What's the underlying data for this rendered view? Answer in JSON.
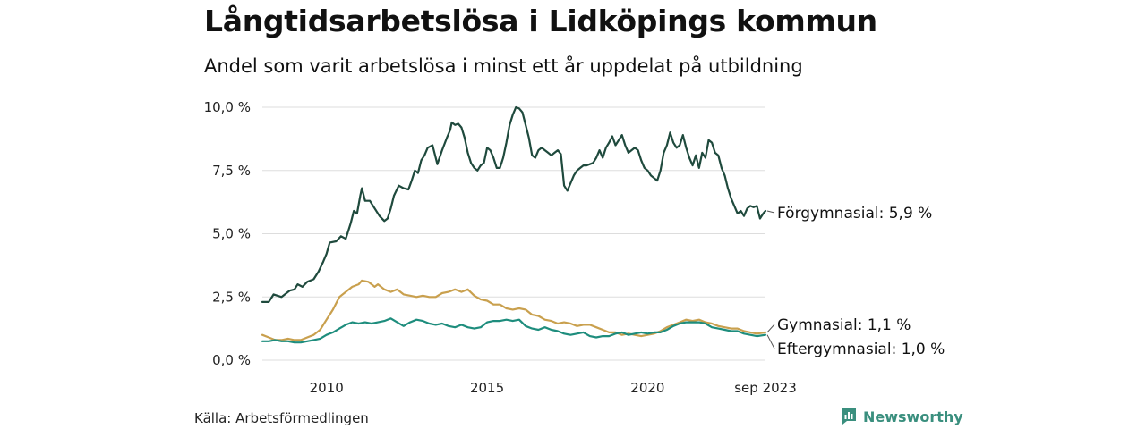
{
  "colors": {
    "forgymnasial": "#1f4a3d",
    "gymnasial": "#c9a04e",
    "eftergymnasial": "#1e8d7d",
    "grid": "#dddddd",
    "brand": "#3a8f7e"
  },
  "chart_data": {
    "type": "line",
    "title": "Långtidsarbetslösa i Lidköpings kommun",
    "subtitle": "Andel som varit arbetslösa i minst ett år uppdelat på utbildning",
    "xlabel": "",
    "ylabel": "",
    "xlim": [
      2008.0,
      2023.67
    ],
    "ylim": [
      0,
      10
    ],
    "y_ticks": [
      0,
      2.5,
      5,
      7.5,
      10
    ],
    "y_tick_labels": [
      "0,0 %",
      "2,5 %",
      "5,0 %",
      "7,5 %",
      "10,0 %"
    ],
    "x_ticks": [
      2010,
      2015,
      2020,
      2023.67
    ],
    "x_tick_labels": [
      "2010",
      "2015",
      "2020",
      "sep 2023"
    ],
    "grid": true,
    "series": [
      {
        "name": "Förgymnasial",
        "end_label": "Förgymnasial: 5,9 %",
        "color_key": "forgymnasial",
        "points": [
          [
            2008.0,
            2.3
          ],
          [
            2008.2,
            2.3
          ],
          [
            2008.35,
            2.6
          ],
          [
            2008.6,
            2.5
          ],
          [
            2008.85,
            2.75
          ],
          [
            2009.0,
            2.8
          ],
          [
            2009.1,
            3.0
          ],
          [
            2009.25,
            2.9
          ],
          [
            2009.4,
            3.1
          ],
          [
            2009.6,
            3.2
          ],
          [
            2009.75,
            3.5
          ],
          [
            2009.9,
            3.9
          ],
          [
            2010.0,
            4.2
          ],
          [
            2010.1,
            4.65
          ],
          [
            2010.3,
            4.7
          ],
          [
            2010.45,
            4.9
          ],
          [
            2010.6,
            4.8
          ],
          [
            2010.75,
            5.4
          ],
          [
            2010.85,
            5.9
          ],
          [
            2010.95,
            5.8
          ],
          [
            2011.05,
            6.5
          ],
          [
            2011.1,
            6.8
          ],
          [
            2011.2,
            6.3
          ],
          [
            2011.35,
            6.3
          ],
          [
            2011.5,
            6.0
          ],
          [
            2011.65,
            5.7
          ],
          [
            2011.8,
            5.5
          ],
          [
            2011.9,
            5.6
          ],
          [
            2012.0,
            6.0
          ],
          [
            2012.1,
            6.5
          ],
          [
            2012.25,
            6.9
          ],
          [
            2012.4,
            6.8
          ],
          [
            2012.55,
            6.75
          ],
          [
            2012.65,
            7.1
          ],
          [
            2012.75,
            7.5
          ],
          [
            2012.85,
            7.4
          ],
          [
            2012.95,
            7.9
          ],
          [
            2013.05,
            8.1
          ],
          [
            2013.15,
            8.4
          ],
          [
            2013.3,
            8.5
          ],
          [
            2013.45,
            7.75
          ],
          [
            2013.6,
            8.3
          ],
          [
            2013.75,
            8.8
          ],
          [
            2013.85,
            9.1
          ],
          [
            2013.9,
            9.4
          ],
          [
            2014.0,
            9.3
          ],
          [
            2014.1,
            9.35
          ],
          [
            2014.2,
            9.2
          ],
          [
            2014.3,
            8.8
          ],
          [
            2014.4,
            8.2
          ],
          [
            2014.5,
            7.8
          ],
          [
            2014.6,
            7.6
          ],
          [
            2014.7,
            7.5
          ],
          [
            2014.8,
            7.7
          ],
          [
            2014.9,
            7.8
          ],
          [
            2015.0,
            8.4
          ],
          [
            2015.1,
            8.3
          ],
          [
            2015.2,
            8.0
          ],
          [
            2015.3,
            7.6
          ],
          [
            2015.4,
            7.6
          ],
          [
            2015.5,
            8.0
          ],
          [
            2015.6,
            8.6
          ],
          [
            2015.7,
            9.3
          ],
          [
            2015.8,
            9.7
          ],
          [
            2015.9,
            10.0
          ],
          [
            2016.0,
            9.95
          ],
          [
            2016.1,
            9.8
          ],
          [
            2016.2,
            9.3
          ],
          [
            2016.3,
            8.8
          ],
          [
            2016.4,
            8.1
          ],
          [
            2016.5,
            8.0
          ],
          [
            2016.6,
            8.3
          ],
          [
            2016.7,
            8.4
          ],
          [
            2016.8,
            8.3
          ],
          [
            2016.9,
            8.2
          ],
          [
            2017.0,
            8.1
          ],
          [
            2017.1,
            8.2
          ],
          [
            2017.2,
            8.3
          ],
          [
            2017.3,
            8.15
          ],
          [
            2017.4,
            6.9
          ],
          [
            2017.5,
            6.7
          ],
          [
            2017.6,
            7.0
          ],
          [
            2017.7,
            7.3
          ],
          [
            2017.8,
            7.5
          ],
          [
            2017.9,
            7.6
          ],
          [
            2018.0,
            7.7
          ],
          [
            2018.1,
            7.7
          ],
          [
            2018.2,
            7.75
          ],
          [
            2018.3,
            7.8
          ],
          [
            2018.4,
            8.0
          ],
          [
            2018.5,
            8.3
          ],
          [
            2018.6,
            8.0
          ],
          [
            2018.7,
            8.4
          ],
          [
            2018.8,
            8.6
          ],
          [
            2018.9,
            8.85
          ],
          [
            2019.0,
            8.5
          ],
          [
            2019.1,
            8.7
          ],
          [
            2019.2,
            8.9
          ],
          [
            2019.3,
            8.5
          ],
          [
            2019.4,
            8.2
          ],
          [
            2019.5,
            8.3
          ],
          [
            2019.6,
            8.4
          ],
          [
            2019.7,
            8.3
          ],
          [
            2019.8,
            7.9
          ],
          [
            2019.9,
            7.6
          ],
          [
            2020.0,
            7.5
          ],
          [
            2020.1,
            7.3
          ],
          [
            2020.2,
            7.2
          ],
          [
            2020.3,
            7.1
          ],
          [
            2020.4,
            7.5
          ],
          [
            2020.5,
            8.2
          ],
          [
            2020.6,
            8.5
          ],
          [
            2020.7,
            9.0
          ],
          [
            2020.8,
            8.6
          ],
          [
            2020.9,
            8.4
          ],
          [
            2021.0,
            8.5
          ],
          [
            2021.1,
            8.9
          ],
          [
            2021.2,
            8.4
          ],
          [
            2021.3,
            8.0
          ],
          [
            2021.4,
            7.7
          ],
          [
            2021.5,
            8.1
          ],
          [
            2021.6,
            7.6
          ],
          [
            2021.7,
            8.2
          ],
          [
            2021.8,
            8.0
          ],
          [
            2021.9,
            8.7
          ],
          [
            2022.0,
            8.6
          ],
          [
            2022.1,
            8.2
          ],
          [
            2022.2,
            8.1
          ],
          [
            2022.3,
            7.6
          ],
          [
            2022.4,
            7.3
          ],
          [
            2022.5,
            6.8
          ],
          [
            2022.6,
            6.4
          ],
          [
            2022.7,
            6.1
          ],
          [
            2022.8,
            5.8
          ],
          [
            2022.9,
            5.9
          ],
          [
            2023.0,
            5.7
          ],
          [
            2023.1,
            6.0
          ],
          [
            2023.2,
            6.1
          ],
          [
            2023.3,
            6.05
          ],
          [
            2023.4,
            6.1
          ],
          [
            2023.5,
            5.6
          ],
          [
            2023.6,
            5.8
          ],
          [
            2023.67,
            5.9
          ]
        ]
      },
      {
        "name": "Gymnasial",
        "end_label": "Gymnasial: 1,1 %",
        "color_key": "gymnasial",
        "points": [
          [
            2008.0,
            1.0
          ],
          [
            2008.2,
            0.9
          ],
          [
            2008.4,
            0.8
          ],
          [
            2008.6,
            0.8
          ],
          [
            2008.8,
            0.85
          ],
          [
            2009.0,
            0.8
          ],
          [
            2009.2,
            0.8
          ],
          [
            2009.4,
            0.9
          ],
          [
            2009.6,
            1.0
          ],
          [
            2009.8,
            1.2
          ],
          [
            2010.0,
            1.6
          ],
          [
            2010.2,
            2.0
          ],
          [
            2010.4,
            2.5
          ],
          [
            2010.6,
            2.7
          ],
          [
            2010.8,
            2.9
          ],
          [
            2011.0,
            3.0
          ],
          [
            2011.1,
            3.15
          ],
          [
            2011.3,
            3.1
          ],
          [
            2011.5,
            2.9
          ],
          [
            2011.6,
            3.0
          ],
          [
            2011.8,
            2.8
          ],
          [
            2012.0,
            2.7
          ],
          [
            2012.2,
            2.8
          ],
          [
            2012.4,
            2.6
          ],
          [
            2012.6,
            2.55
          ],
          [
            2012.8,
            2.5
          ],
          [
            2013.0,
            2.55
          ],
          [
            2013.2,
            2.5
          ],
          [
            2013.4,
            2.5
          ],
          [
            2013.6,
            2.65
          ],
          [
            2013.8,
            2.7
          ],
          [
            2014.0,
            2.8
          ],
          [
            2014.2,
            2.7
          ],
          [
            2014.4,
            2.8
          ],
          [
            2014.6,
            2.55
          ],
          [
            2014.8,
            2.4
          ],
          [
            2015.0,
            2.35
          ],
          [
            2015.2,
            2.2
          ],
          [
            2015.4,
            2.2
          ],
          [
            2015.6,
            2.05
          ],
          [
            2015.8,
            2.0
          ],
          [
            2016.0,
            2.05
          ],
          [
            2016.2,
            2.0
          ],
          [
            2016.4,
            1.8
          ],
          [
            2016.6,
            1.75
          ],
          [
            2016.8,
            1.6
          ],
          [
            2017.0,
            1.55
          ],
          [
            2017.2,
            1.45
          ],
          [
            2017.4,
            1.5
          ],
          [
            2017.6,
            1.45
          ],
          [
            2017.8,
            1.35
          ],
          [
            2018.0,
            1.4
          ],
          [
            2018.2,
            1.4
          ],
          [
            2018.4,
            1.3
          ],
          [
            2018.6,
            1.2
          ],
          [
            2018.8,
            1.1
          ],
          [
            2019.0,
            1.1
          ],
          [
            2019.2,
            1.0
          ],
          [
            2019.4,
            1.05
          ],
          [
            2019.6,
            1.0
          ],
          [
            2019.8,
            0.95
          ],
          [
            2020.0,
            1.0
          ],
          [
            2020.2,
            1.05
          ],
          [
            2020.4,
            1.15
          ],
          [
            2020.6,
            1.3
          ],
          [
            2020.8,
            1.4
          ],
          [
            2021.0,
            1.5
          ],
          [
            2021.2,
            1.6
          ],
          [
            2021.4,
            1.55
          ],
          [
            2021.6,
            1.6
          ],
          [
            2021.8,
            1.5
          ],
          [
            2022.0,
            1.45
          ],
          [
            2022.2,
            1.35
          ],
          [
            2022.4,
            1.3
          ],
          [
            2022.6,
            1.25
          ],
          [
            2022.8,
            1.25
          ],
          [
            2023.0,
            1.15
          ],
          [
            2023.2,
            1.1
          ],
          [
            2023.4,
            1.05
          ],
          [
            2023.67,
            1.1
          ]
        ]
      },
      {
        "name": "Eftergymnasial",
        "end_label": "Eftergymnasial: 1,0 %",
        "color_key": "eftergymnasial",
        "points": [
          [
            2008.0,
            0.75
          ],
          [
            2008.2,
            0.75
          ],
          [
            2008.4,
            0.8
          ],
          [
            2008.6,
            0.75
          ],
          [
            2008.8,
            0.75
          ],
          [
            2009.0,
            0.7
          ],
          [
            2009.2,
            0.7
          ],
          [
            2009.4,
            0.75
          ],
          [
            2009.6,
            0.8
          ],
          [
            2009.8,
            0.85
          ],
          [
            2010.0,
            1.0
          ],
          [
            2010.2,
            1.1
          ],
          [
            2010.4,
            1.25
          ],
          [
            2010.6,
            1.4
          ],
          [
            2010.8,
            1.5
          ],
          [
            2011.0,
            1.45
          ],
          [
            2011.2,
            1.5
          ],
          [
            2011.4,
            1.45
          ],
          [
            2011.6,
            1.5
          ],
          [
            2011.8,
            1.55
          ],
          [
            2012.0,
            1.65
          ],
          [
            2012.2,
            1.5
          ],
          [
            2012.4,
            1.35
          ],
          [
            2012.6,
            1.5
          ],
          [
            2012.8,
            1.6
          ],
          [
            2013.0,
            1.55
          ],
          [
            2013.2,
            1.45
          ],
          [
            2013.4,
            1.4
          ],
          [
            2013.6,
            1.45
          ],
          [
            2013.8,
            1.35
          ],
          [
            2014.0,
            1.3
          ],
          [
            2014.2,
            1.4
          ],
          [
            2014.4,
            1.3
          ],
          [
            2014.6,
            1.25
          ],
          [
            2014.8,
            1.3
          ],
          [
            2015.0,
            1.5
          ],
          [
            2015.2,
            1.55
          ],
          [
            2015.4,
            1.55
          ],
          [
            2015.6,
            1.6
          ],
          [
            2015.8,
            1.55
          ],
          [
            2016.0,
            1.6
          ],
          [
            2016.2,
            1.35
          ],
          [
            2016.4,
            1.25
          ],
          [
            2016.6,
            1.2
          ],
          [
            2016.8,
            1.3
          ],
          [
            2017.0,
            1.2
          ],
          [
            2017.2,
            1.15
          ],
          [
            2017.4,
            1.05
          ],
          [
            2017.6,
            1.0
          ],
          [
            2017.8,
            1.05
          ],
          [
            2018.0,
            1.1
          ],
          [
            2018.2,
            0.95
          ],
          [
            2018.4,
            0.9
          ],
          [
            2018.6,
            0.95
          ],
          [
            2018.8,
            0.95
          ],
          [
            2019.0,
            1.05
          ],
          [
            2019.2,
            1.1
          ],
          [
            2019.4,
            1.0
          ],
          [
            2019.6,
            1.05
          ],
          [
            2019.8,
            1.1
          ],
          [
            2020.0,
            1.05
          ],
          [
            2020.2,
            1.1
          ],
          [
            2020.4,
            1.1
          ],
          [
            2020.6,
            1.2
          ],
          [
            2020.8,
            1.35
          ],
          [
            2021.0,
            1.45
          ],
          [
            2021.2,
            1.5
          ],
          [
            2021.4,
            1.5
          ],
          [
            2021.6,
            1.5
          ],
          [
            2021.8,
            1.45
          ],
          [
            2022.0,
            1.3
          ],
          [
            2022.2,
            1.25
          ],
          [
            2022.4,
            1.2
          ],
          [
            2022.6,
            1.15
          ],
          [
            2022.8,
            1.15
          ],
          [
            2023.0,
            1.05
          ],
          [
            2023.2,
            1.0
          ],
          [
            2023.4,
            0.95
          ],
          [
            2023.67,
            1.0
          ]
        ]
      }
    ]
  },
  "footer": {
    "source": "Källa: Arbetsförmedlingen",
    "brand": "Newsworthy"
  }
}
